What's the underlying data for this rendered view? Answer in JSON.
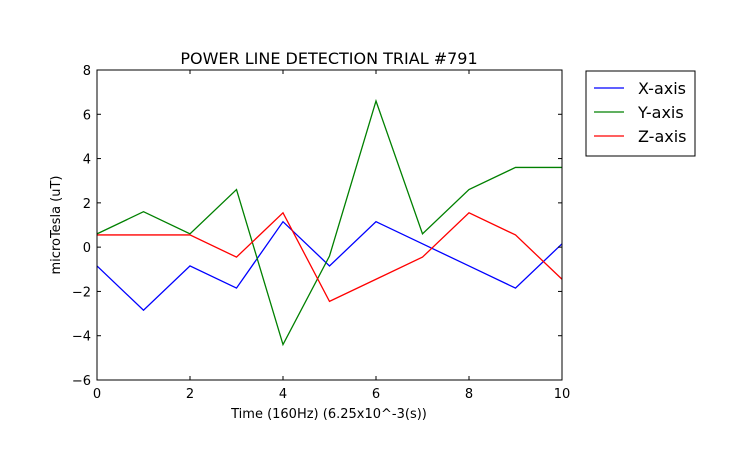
{
  "chart_data": {
    "type": "line",
    "title": "POWER LINE DETECTION TRIAL #791",
    "xlabel": "Time (160Hz) (6.25x10^-3(s))",
    "ylabel": "microTesla (uT)",
    "xlim": [
      0,
      10
    ],
    "ylim": [
      -6,
      8
    ],
    "x_ticks": [
      "0",
      "2",
      "4",
      "6",
      "8",
      "10"
    ],
    "y_ticks": [
      "−6",
      "−4",
      "−2",
      "0",
      "2",
      "4",
      "6",
      "8"
    ],
    "x_tick_values": [
      0,
      2,
      4,
      6,
      8,
      10
    ],
    "y_tick_values": [
      -6,
      -4,
      -2,
      0,
      2,
      4,
      6,
      8
    ],
    "grid": false,
    "legend_position": "outside-top-right",
    "x": [
      0,
      1,
      2,
      3,
      4,
      5,
      6,
      7,
      8,
      9,
      10
    ],
    "series": [
      {
        "name": "X-axis",
        "color": "#0000ff",
        "values": [
          -0.85,
          -2.85,
          -0.85,
          -1.85,
          1.15,
          -0.85,
          1.15,
          0.15,
          -0.85,
          -1.85,
          0.15
        ]
      },
      {
        "name": "Y-axis",
        "color": "#008000",
        "values": [
          0.6,
          1.6,
          0.6,
          2.6,
          -4.4,
          -0.4,
          6.6,
          0.6,
          2.6,
          3.6,
          3.6
        ]
      },
      {
        "name": "Z-axis",
        "color": "#ff0000",
        "values": [
          0.55,
          0.55,
          0.55,
          -0.45,
          1.55,
          -2.45,
          -1.45,
          -0.45,
          1.55,
          0.55,
          -1.45
        ]
      }
    ]
  }
}
